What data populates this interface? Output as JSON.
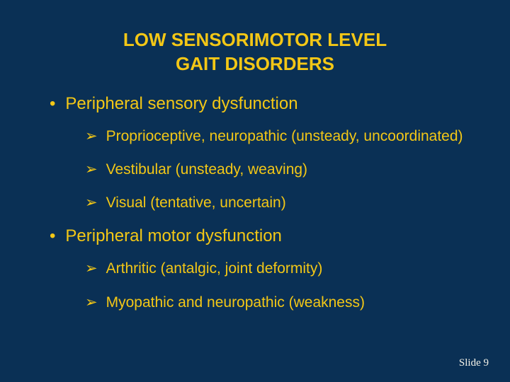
{
  "colors": {
    "background": "#0a3055",
    "text": "#f3c716",
    "footer": "#f5f3e9"
  },
  "typography": {
    "title_fontsize": 26,
    "l1_fontsize": 24,
    "l2_fontsize": 21,
    "footer_fontsize": 15,
    "title_weight": "bold",
    "family": "Arial"
  },
  "title": {
    "line1": "LOW SENSORIMOTOR LEVEL",
    "line2": "GAIT DISORDERS"
  },
  "sections": [
    {
      "heading": "Peripheral sensory dysfunction",
      "items": [
        "Proprioceptive, neuropathic (unsteady, uncoordinated)",
        "Vestibular (unsteady, weaving)",
        "Visual (tentative, uncertain)"
      ]
    },
    {
      "heading": "Peripheral motor dysfunction",
      "items": [
        "Arthritic (antalgic, joint deformity)",
        "Myopathic and neuropathic (weakness)"
      ]
    }
  ],
  "markers": {
    "l1": "•",
    "l2": "➢"
  },
  "footer": {
    "label": "Slide 9"
  }
}
